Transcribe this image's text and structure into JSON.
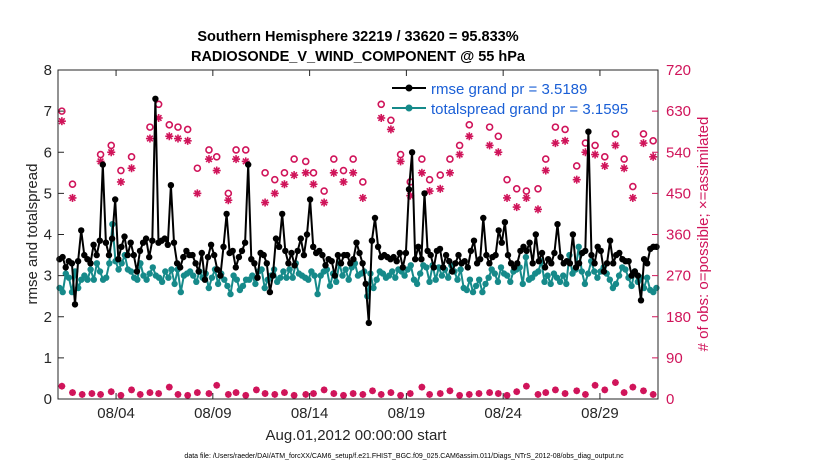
{
  "chart_data": {
    "type": "line",
    "title": "Southern Hemisphere 32219 / 33620 = 95.833%",
    "subtitle": "RADIOSONDE_V_WIND_COMPONENT @ 55 hPa",
    "xlabel": "Aug.01,2012 00:00:00 start",
    "ylabel": "rmse and totalspread",
    "y2label": "# of obs: o=possible; ×=assimilated",
    "footnote": "data file: /Users/raeder/DAI/ATM_forcXX/CAM6_setup/f.e21.FHIST_BGC.f09_025.CAM6assim.011/Diags_NTrS_2012-08/obs_diag_output.nc",
    "xlim": [
      1,
      32
    ],
    "ylim": [
      0,
      8
    ],
    "y2lim": [
      0,
      720
    ],
    "xtick_values": [
      4,
      9,
      14,
      19,
      24,
      29
    ],
    "xtick_labels": [
      "08/04",
      "08/09",
      "08/14",
      "08/19",
      "08/24",
      "08/29"
    ],
    "ytick_labels": [
      "0",
      "1",
      "2",
      "3",
      "4",
      "5",
      "6",
      "7",
      "8"
    ],
    "y2tick_labels": [
      "0",
      "90",
      "180",
      "270",
      "360",
      "450",
      "540",
      "630",
      "720"
    ],
    "colors": {
      "rmse": "#000000",
      "spread": "#168a8a",
      "obs": "#d0145a",
      "legend_text": "#1a5fd6",
      "axis": "#262626"
    },
    "legend": [
      "rmse grand pr = 3.5189",
      "totalspread grand pr = 3.1595"
    ],
    "series": [
      {
        "name": "rmse",
        "values": [
          3.4,
          3.45,
          3.2,
          3.35,
          3.3,
          2.3,
          3.35,
          4.1,
          3.5,
          3.4,
          3.3,
          3.75,
          3.5,
          3.85,
          5.7,
          3.8,
          3.5,
          3.9,
          4.85,
          3.4,
          3.7,
          3.95,
          3.5,
          3.8,
          3.5,
          3.1,
          3.6,
          3.8,
          3.9,
          3.45,
          3.85,
          7.3,
          3.8,
          3.85,
          3.9,
          3.75,
          5.2,
          3.8,
          3.3,
          3.2,
          3.45,
          3.6,
          3.5,
          3.5,
          3.3,
          3.1,
          3.55,
          2.9,
          3.45,
          3.75,
          3.5,
          3.15,
          3.0,
          3.7,
          4.5,
          3.55,
          3.6,
          3.2,
          3.45,
          3.6,
          3.8,
          5.7,
          3.4,
          3.3,
          2.95,
          3.55,
          3.5,
          3.3,
          2.6,
          3.0,
          3.9,
          3.7,
          4.5,
          3.6,
          3.3,
          3.55,
          3.25,
          3.6,
          3.9,
          3.5,
          4.0,
          4.85,
          3.7,
          3.55,
          3.6,
          3.5,
          3.25,
          3.4,
          3.35,
          3.0,
          3.5,
          3.3,
          3.5,
          3.5,
          3.3,
          3.4,
          3.8,
          3.55,
          3.3,
          2.8,
          1.85,
          3.85,
          4.4,
          3.7,
          3.45,
          3.5,
          3.45,
          3.4,
          3.45,
          3.35,
          3.55,
          3.2,
          3.55,
          5.1,
          6.0,
          3.4,
          3.7,
          3.4,
          5.0,
          3.6,
          3.5,
          3.2,
          3.6,
          3.65,
          3.2,
          3.5,
          3.35,
          3.1,
          3.3,
          3.5,
          3.3,
          3.35,
          3.2,
          3.6,
          3.85,
          3.3,
          3.4,
          4.4,
          3.5,
          3.3,
          3.45,
          3.5,
          4.1,
          3.8,
          4.3,
          3.5,
          3.3,
          3.2,
          3.3,
          3.6,
          3.7,
          3.6,
          3.8,
          3.3,
          4.0,
          3.35,
          3.55,
          3.2,
          3.4,
          3.3,
          3.55,
          4.25,
          3.45,
          3.3,
          3.35,
          3.3,
          4.0,
          3.2,
          3.3,
          3.55,
          3.6,
          6.5,
          3.5,
          3.3,
          3.7,
          3.6,
          3.1,
          3.3,
          3.85,
          3.3,
          3.5,
          3.55,
          3.4,
          3.35,
          3.35,
          3.0,
          3.1,
          3.0,
          2.4,
          3.4,
          3.3,
          3.65,
          3.7,
          3.7
        ]
      },
      {
        "name": "totalspread",
        "values": [
          2.7,
          2.6,
          3.05,
          2.95,
          2.6,
          3.1,
          2.7,
          2.9,
          3.0,
          2.9,
          3.15,
          2.9,
          3.3,
          3.1,
          2.9,
          2.95,
          3.3,
          4.25,
          3.35,
          3.15,
          3.3,
          3.5,
          3.15,
          3.1,
          2.95,
          2.9,
          3.3,
          3.0,
          2.9,
          3.05,
          3.2,
          3.0,
          2.95,
          2.85,
          3.1,
          2.95,
          3.15,
          2.8,
          3.15,
          2.6,
          3.0,
          3.05,
          3.1,
          3.0,
          2.85,
          3.1,
          2.95,
          3.05,
          2.7,
          2.95,
          3.15,
          2.8,
          3.05,
          2.9,
          2.75,
          2.55,
          3.0,
          2.9,
          2.65,
          2.75,
          2.9,
          2.9,
          3.0,
          2.8,
          3.1,
          3.15,
          2.7,
          2.9,
          3.0,
          3.15,
          2.85,
          2.95,
          3.1,
          2.95,
          3.15,
          2.95,
          3.3,
          3.05,
          3.0,
          2.95,
          2.9,
          3.1,
          3.0,
          2.55,
          3.0,
          3.1,
          3.15,
          2.75,
          3.05,
          2.85,
          3.3,
          3.0,
          3.15,
          2.9,
          3.2,
          3.3,
          3.0,
          3.05,
          3.1,
          2.5,
          3.05,
          2.7,
          2.9,
          3.1,
          3.05,
          2.95,
          3.0,
          3.1,
          2.95,
          3.15,
          3.1,
          3.0,
          3.15,
          3.25,
          2.9,
          2.8,
          3.05,
          3.25,
          3.2,
          2.85,
          3.25,
          2.9,
          3.2,
          3.0,
          3.15,
          2.95,
          3.25,
          3.1,
          2.9,
          3.15,
          2.7,
          2.65,
          2.9,
          2.6,
          2.75,
          2.9,
          2.6,
          2.8,
          2.95,
          3.15,
          3.05,
          2.85,
          3.2,
          3.05,
          3.0,
          2.85,
          3.1,
          3.15,
          3.2,
          2.8,
          3.45,
          2.9,
          2.95,
          3.05,
          3.1,
          3.35,
          2.85,
          3.0,
          2.8,
          3.05,
          2.95,
          2.85,
          3.0,
          2.8,
          3.5,
          3.05,
          3.15,
          3.7,
          3.1,
          2.8,
          3.05,
          3.35,
          3.1,
          2.95,
          3.1,
          3.2,
          3.05,
          2.9,
          2.7,
          2.8,
          3.0,
          3.2,
          3.15,
          2.95,
          2.75,
          3.1,
          2.85,
          2.95,
          2.7,
          2.95,
          2.65,
          2.6,
          2.7
        ]
      },
      {
        "name": "possible obs (o)",
        "axis": "right",
        "x": [
          1.2,
          1.75,
          3.2,
          3.75,
          4.25,
          4.8,
          5.75,
          6.2,
          6.75,
          7.2,
          7.7,
          8.2,
          8.8,
          9.2,
          9.8,
          10.2,
          10.7,
          11.7,
          12.2,
          12.7,
          13.2,
          13.8,
          14.2,
          14.75,
          15.25,
          15.75,
          16.25,
          16.75,
          17.7,
          18.2,
          18.7,
          19.2,
          19.8,
          20.2,
          20.75,
          21.25,
          21.75,
          22.25,
          23.3,
          23.75,
          24.2,
          24.7,
          25.2,
          25.8,
          26.2,
          26.7,
          27.2,
          27.8,
          28.25,
          28.75,
          29.25,
          29.8,
          30.25,
          30.7,
          31.25,
          31.75
        ],
        "values": [
          630,
          470,
          535,
          555,
          500,
          530,
          595,
          645,
          600,
          595,
          590,
          505,
          545,
          530,
          450,
          545,
          545,
          495,
          480,
          495,
          525,
          520,
          495,
          455,
          525,
          500,
          525,
          475,
          645,
          610,
          535,
          475,
          525,
          480,
          490,
          525,
          555,
          600,
          595,
          575,
          480,
          460,
          455,
          460,
          525,
          595,
          590,
          510,
          560,
          555,
          530,
          580,
          525,
          465,
          580,
          565
        ]
      },
      {
        "name": "assimilated obs (×)",
        "axis": "right",
        "x": [
          1.2,
          1.75,
          3.2,
          3.75,
          4.25,
          4.8,
          5.75,
          6.2,
          6.75,
          7.2,
          7.7,
          8.2,
          8.8,
          9.2,
          9.8,
          10.2,
          10.7,
          11.7,
          12.2,
          12.7,
          13.2,
          13.8,
          14.2,
          14.75,
          15.25,
          15.75,
          16.25,
          16.75,
          17.7,
          18.2,
          18.7,
          19.2,
          19.8,
          20.2,
          20.75,
          21.25,
          21.75,
          22.25,
          23.3,
          23.75,
          24.2,
          24.7,
          25.2,
          25.8,
          26.2,
          26.7,
          27.2,
          27.8,
          28.25,
          28.75,
          29.25,
          29.8,
          30.25,
          30.7,
          31.25,
          31.75
        ],
        "values": [
          608,
          440,
          520,
          540,
          475,
          505,
          570,
          615,
          575,
          570,
          565,
          450,
          525,
          500,
          435,
          525,
          520,
          430,
          450,
          470,
          490,
          495,
          470,
          430,
          495,
          475,
          495,
          440,
          615,
          590,
          520,
          445,
          495,
          455,
          460,
          495,
          535,
          575,
          555,
          540,
          440,
          420,
          440,
          415,
          500,
          560,
          565,
          480,
          540,
          535,
          510,
          555,
          505,
          440,
          560,
          530
        ]
      },
      {
        "name": "possible obs (o) at 0 hPa-band",
        "axis": "right",
        "x": [
          1.2,
          1.75,
          2.25,
          2.75,
          3.2,
          3.75,
          4.25,
          4.8,
          5.25,
          5.75,
          6.2,
          6.75,
          7.2,
          7.7,
          8.2,
          8.8,
          9.2,
          9.8,
          10.2,
          10.7,
          11.25,
          11.7,
          12.2,
          12.7,
          13.2,
          13.8,
          14.2,
          14.75,
          15.25,
          15.75,
          16.25,
          16.75,
          17.25,
          17.7,
          18.2,
          18.7,
          19.2,
          19.8,
          20.2,
          20.75,
          21.25,
          21.75,
          22.25,
          22.75,
          23.3,
          23.75,
          24.2,
          24.7,
          25.2,
          25.8,
          26.2,
          26.7,
          27.2,
          27.8,
          28.25,
          28.75,
          29.25,
          29.8,
          30.25,
          30.7,
          31.25,
          31.75
        ],
        "values": [
          28,
          14,
          10,
          12,
          10,
          16,
          8,
          20,
          10,
          14,
          12,
          26,
          10,
          8,
          14,
          12,
          30,
          10,
          14,
          8,
          20,
          12,
          10,
          14,
          8,
          10,
          12,
          20,
          12,
          8,
          12,
          10,
          18,
          10,
          14,
          8,
          12,
          26,
          10,
          12,
          18,
          8,
          10,
          12,
          14,
          12,
          8,
          16,
          28,
          10,
          14,
          20,
          12,
          18,
          10,
          30,
          20,
          36,
          14,
          26,
          18,
          10
        ]
      }
    ]
  }
}
